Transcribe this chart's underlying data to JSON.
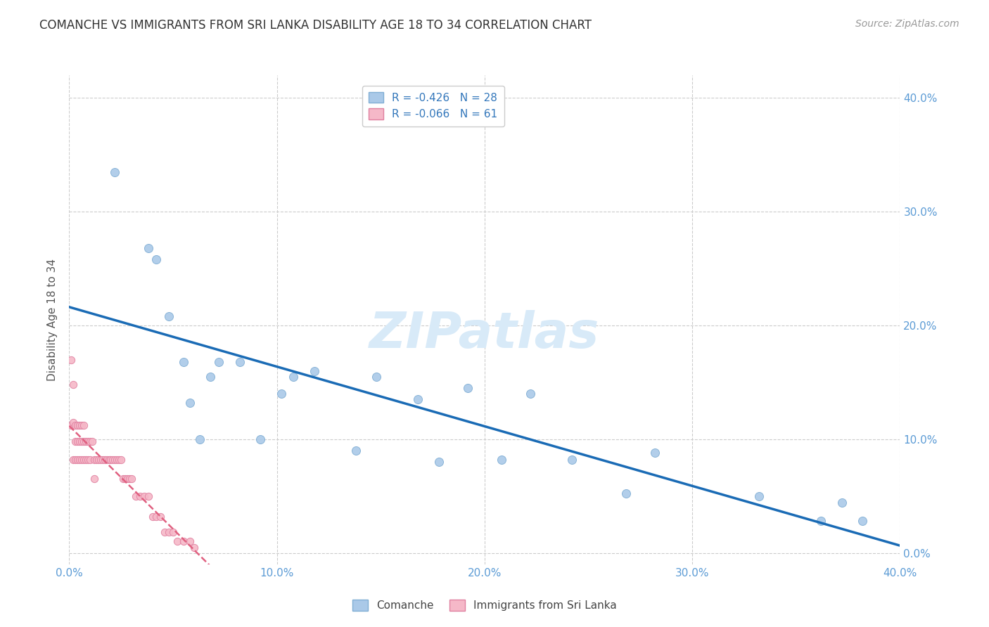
{
  "title": "COMANCHE VS IMMIGRANTS FROM SRI LANKA DISABILITY AGE 18 TO 34 CORRELATION CHART",
  "source": "Source: ZipAtlas.com",
  "ylabel": "Disability Age 18 to 34",
  "xlim": [
    0.0,
    0.4
  ],
  "ylim": [
    -0.01,
    0.42
  ],
  "xticks": [
    0.0,
    0.1,
    0.2,
    0.3,
    0.4
  ],
  "yticks": [
    0.0,
    0.1,
    0.2,
    0.3,
    0.4
  ],
  "grid_color": "#cccccc",
  "background_color": "#ffffff",
  "comanche_color": "#aac9e8",
  "comanche_edge": "#80aed4",
  "srilanka_color": "#f5b8c8",
  "srilanka_edge": "#e080a0",
  "regression_comanche_color": "#1a6bb5",
  "regression_srilanka_color": "#e06080",
  "legend_label_comanche": "R = -0.426   N = 28",
  "legend_label_srilanka": "R = -0.066   N = 61",
  "legend_footer_comanche": "Comanche",
  "legend_footer_srilanka": "Immigrants from Sri Lanka",
  "comanche_x": [
    0.022,
    0.038,
    0.042,
    0.048,
    0.055,
    0.058,
    0.063,
    0.068,
    0.072,
    0.082,
    0.092,
    0.102,
    0.108,
    0.118,
    0.138,
    0.148,
    0.168,
    0.178,
    0.192,
    0.208,
    0.222,
    0.242,
    0.268,
    0.282,
    0.332,
    0.362,
    0.372,
    0.382
  ],
  "comanche_y": [
    0.335,
    0.268,
    0.258,
    0.208,
    0.168,
    0.132,
    0.1,
    0.155,
    0.168,
    0.168,
    0.1,
    0.14,
    0.155,
    0.16,
    0.09,
    0.155,
    0.135,
    0.08,
    0.145,
    0.082,
    0.14,
    0.082,
    0.052,
    0.088,
    0.05,
    0.028,
    0.044,
    0.028
  ],
  "srilanka_x": [
    0.001,
    0.001,
    0.002,
    0.002,
    0.002,
    0.003,
    0.003,
    0.003,
    0.004,
    0.004,
    0.004,
    0.005,
    0.005,
    0.005,
    0.006,
    0.006,
    0.006,
    0.007,
    0.007,
    0.007,
    0.008,
    0.008,
    0.009,
    0.009,
    0.01,
    0.01,
    0.011,
    0.012,
    0.012,
    0.013,
    0.014,
    0.015,
    0.016,
    0.017,
    0.018,
    0.019,
    0.02,
    0.021,
    0.022,
    0.023,
    0.024,
    0.025,
    0.026,
    0.027,
    0.028,
    0.029,
    0.03,
    0.032,
    0.034,
    0.036,
    0.038,
    0.04,
    0.042,
    0.044,
    0.046,
    0.048,
    0.05,
    0.052,
    0.055,
    0.058,
    0.06
  ],
  "srilanka_y": [
    0.17,
    0.112,
    0.148,
    0.115,
    0.082,
    0.112,
    0.098,
    0.082,
    0.112,
    0.098,
    0.082,
    0.112,
    0.098,
    0.082,
    0.112,
    0.098,
    0.082,
    0.112,
    0.098,
    0.082,
    0.098,
    0.082,
    0.098,
    0.082,
    0.098,
    0.082,
    0.098,
    0.082,
    0.065,
    0.082,
    0.082,
    0.082,
    0.082,
    0.082,
    0.082,
    0.082,
    0.082,
    0.082,
    0.082,
    0.082,
    0.082,
    0.082,
    0.065,
    0.065,
    0.065,
    0.065,
    0.065,
    0.05,
    0.05,
    0.05,
    0.05,
    0.032,
    0.032,
    0.032,
    0.018,
    0.018,
    0.018,
    0.01,
    0.01,
    0.01,
    0.005
  ],
  "watermark_text": "ZIPatlas",
  "watermark_color": "#d8eaf8",
  "title_color": "#333333",
  "tick_color": "#5b9bd5",
  "axis_label_color": "#555555"
}
